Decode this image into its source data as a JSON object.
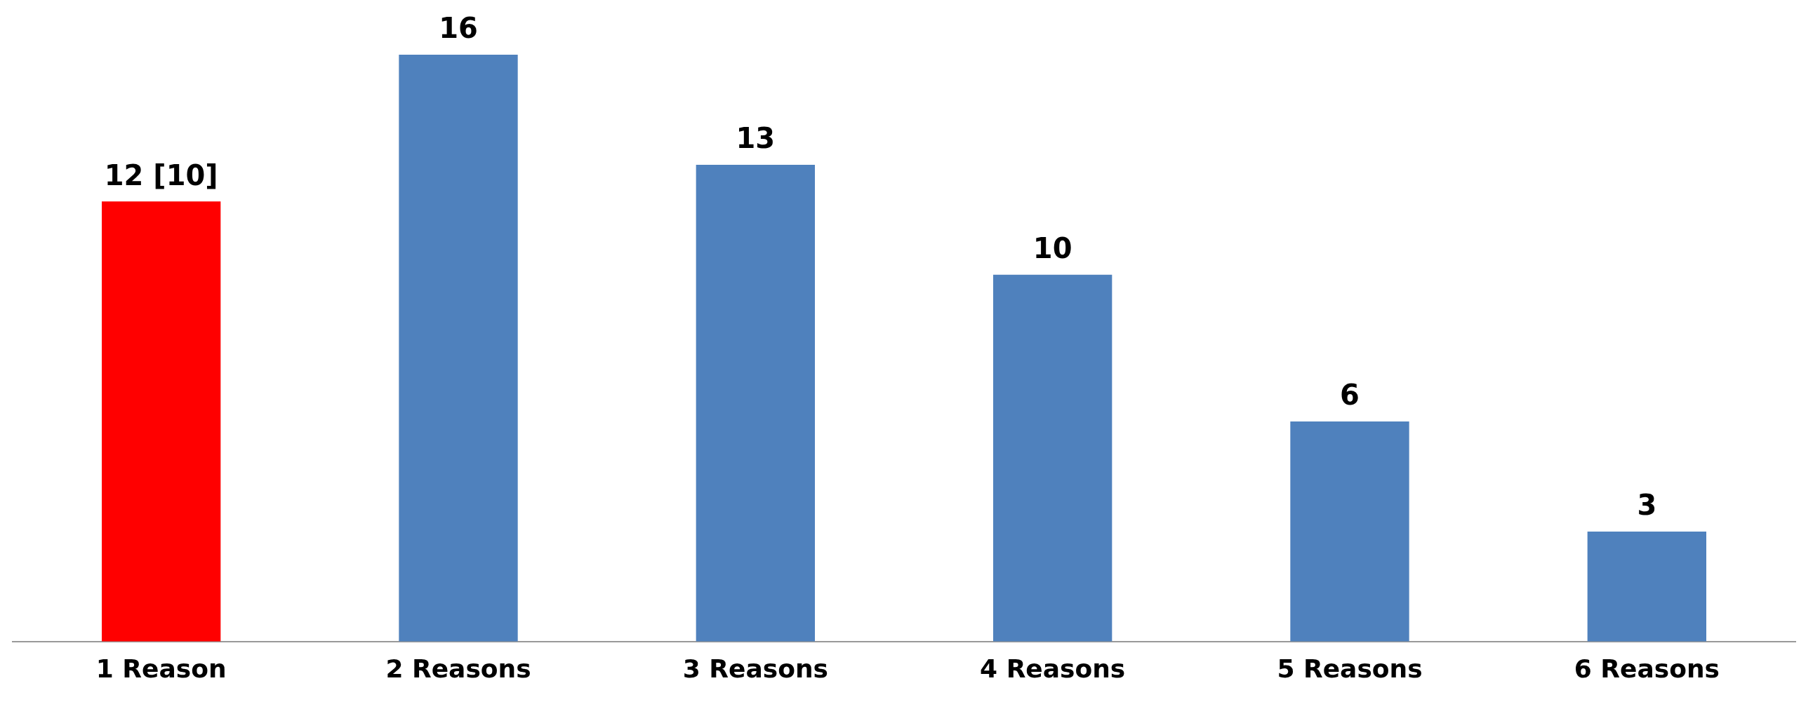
{
  "chart_data": {
    "type": "bar",
    "categories": [
      "1 Reason",
      "2 Reasons",
      "3 Reasons",
      "4 Reasons",
      "5 Reasons",
      "6 Reasons"
    ],
    "values": [
      12,
      16,
      13,
      10,
      6,
      3
    ],
    "colors": [
      "#ff0000",
      "#4f81bd",
      "#4f81bd",
      "#4f81bd",
      "#4f81bd",
      "#4f81bd"
    ],
    "value_labels": [
      "12 [10]",
      "16",
      "13",
      "10",
      "6",
      "3"
    ],
    "grid": false,
    "legend": false
  }
}
